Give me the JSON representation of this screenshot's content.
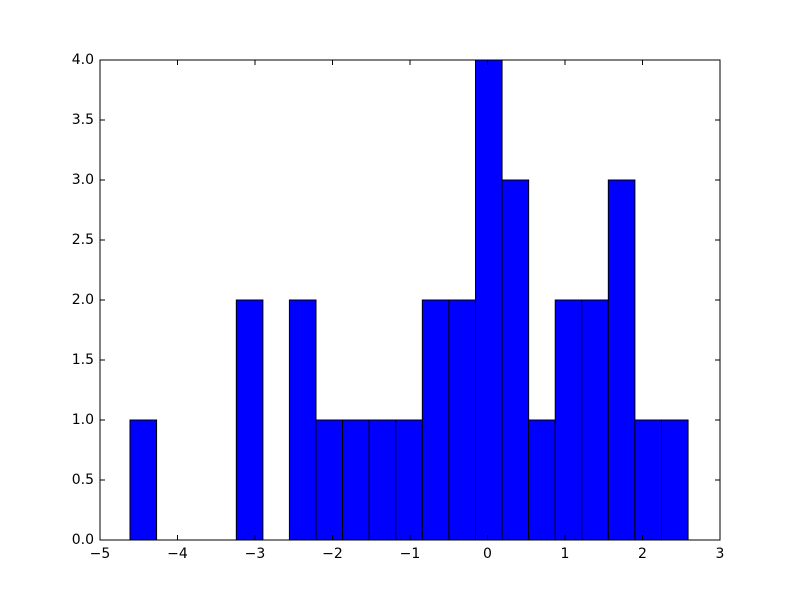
{
  "chart_data": {
    "type": "histogram",
    "bins": [
      -4.613,
      -4.27,
      -3.927,
      -3.584,
      -3.241,
      -2.898,
      -2.556,
      -2.213,
      -1.87,
      -1.527,
      -1.184,
      -0.841,
      -0.498,
      -0.155,
      0.188,
      0.531,
      0.874,
      1.216,
      1.559,
      1.902,
      2.245,
      2.588
    ],
    "values": [
      1,
      0,
      0,
      0,
      2,
      0,
      2,
      1,
      1,
      1,
      1,
      2,
      2,
      4,
      3,
      1,
      2,
      2,
      3,
      1,
      1
    ],
    "color": "#0000ff",
    "xlim": [
      -5,
      3
    ],
    "xticks": [
      {
        "value": -5,
        "label": "−5"
      },
      {
        "value": -4,
        "label": "−4"
      },
      {
        "value": -3,
        "label": "−3"
      },
      {
        "value": -2,
        "label": "−2"
      },
      {
        "value": -1,
        "label": "−1"
      },
      0,
      1,
      2,
      3
    ],
    "ylim": [
      0,
      4
    ],
    "yticks": [
      {
        "value": 0,
        "label": "0.0"
      },
      0.5,
      {
        "value": 1,
        "label": "1.0"
      },
      1.5,
      {
        "value": 2,
        "label": "2.0"
      },
      2.5,
      {
        "value": 3,
        "label": "3.0"
      },
      3.5,
      {
        "value": 4,
        "label": "4.0"
      }
    ],
    "grid": false
  }
}
